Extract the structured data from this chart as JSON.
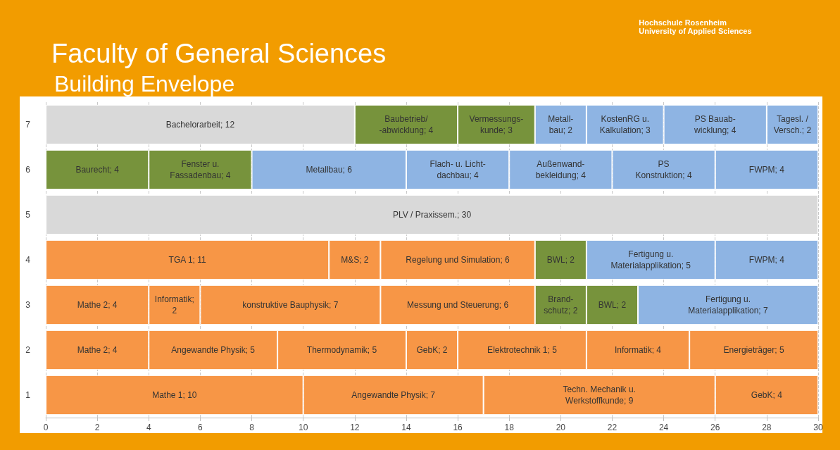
{
  "chart_data": {
    "type": "bar",
    "title": "Faculty of General Sciences",
    "subtitle": "Building Envelope",
    "annotations": [
      "Hochschule Rosenheim\nUniversity of Applied Sciences"
    ],
    "orientation": "horizontal",
    "stacked": true,
    "grid": "x",
    "categories": [
      "7",
      "6",
      "5",
      "4",
      "3",
      "2",
      "1"
    ],
    "xlim": [
      0,
      30
    ],
    "xticks": [
      0,
      2,
      4,
      6,
      8,
      10,
      12,
      14,
      16,
      18,
      20,
      22,
      24,
      26,
      28,
      30
    ],
    "series": [
      {
        "values": [
          12,
          4,
          30,
          11,
          4,
          4,
          10
        ],
        "colors": [
          "#d9d9d9",
          "#77933c",
          "#d9d9d9",
          "#f79646",
          "#f79646",
          "#f79646",
          "#f79646"
        ],
        "value_labels": [
          "Bachelorarbeit; 12",
          "Baurecht; 4",
          "PLV / Praxissem.; 30",
          "TGA 1; 11",
          "Mathe 2; 4",
          "Mathe 2; 4",
          "Mathe 1; 10"
        ]
      },
      {
        "values": [
          4,
          4,
          null,
          2,
          2,
          5,
          7
        ],
        "colors": [
          "#77933c",
          "#77933c",
          null,
          "#f79646",
          "#f79646",
          "#f79646",
          "#f79646"
        ],
        "value_labels": [
          "Baubetrieb/\n-abwicklung; 4",
          "Fenster u.\nFassadenbau; 4",
          null,
          "M&S; 2",
          "Informatik;\n2",
          "Angewandte Physik; 5",
          "Angewandte Physik; 7"
        ]
      },
      {
        "values": [
          3,
          6,
          null,
          6,
          7,
          5,
          9
        ],
        "colors": [
          "#77933c",
          "#8eb4e3",
          null,
          "#f79646",
          "#f79646",
          "#f79646",
          "#f79646"
        ],
        "value_labels": [
          "Vermessungs-\nkunde; 3",
          "Metallbau; 6",
          null,
          "Regelung und Simulation; 6",
          "konstruktive Bauphysik; 7",
          "Thermodynamik; 5",
          "Techn. Mechanik u.\nWerkstoffkunde; 9"
        ]
      },
      {
        "values": [
          2,
          4,
          null,
          2,
          6,
          2,
          4
        ],
        "colors": [
          "#8eb4e3",
          "#8eb4e3",
          null,
          "#77933c",
          "#f79646",
          "#f79646",
          "#f79646"
        ],
        "value_labels": [
          "Metall-\nbau; 2",
          "Flach- u. Licht-\ndachbau; 4",
          null,
          "BWL; 2",
          "Messung und Steuerung; 6",
          "GebK; 2",
          "GebK; 4"
        ]
      },
      {
        "values": [
          3,
          4,
          null,
          5,
          2,
          5,
          null
        ],
        "colors": [
          "#8eb4e3",
          "#8eb4e3",
          null,
          "#8eb4e3",
          "#77933c",
          "#f79646",
          null
        ],
        "value_labels": [
          "KostenRG u.\nKalkulation; 3",
          "Außenwand-\nbekleidung; 4",
          null,
          "Fertigung u.\nMaterialapplikation; 5",
          "Brand-\nschutz; 2",
          "Elektrotechnik 1; 5",
          null
        ]
      },
      {
        "values": [
          4,
          4,
          null,
          4,
          2,
          4,
          null
        ],
        "colors": [
          "#8eb4e3",
          "#8eb4e3",
          null,
          "#8eb4e3",
          "#77933c",
          "#f79646",
          null
        ],
        "value_labels": [
          "PS Bauab-\nwicklung; 4",
          "PS\nKonstruktion; 4",
          null,
          "FWPM; 4",
          "BWL; 2",
          "Informatik; 4",
          null
        ]
      },
      {
        "values": [
          2,
          4,
          null,
          null,
          7,
          5,
          null
        ],
        "colors": [
          "#8eb4e3",
          "#8eb4e3",
          null,
          null,
          "#8eb4e3",
          "#f79646",
          null
        ],
        "value_labels": [
          "Tagesl. /\nVersch.; 2",
          "FWPM; 4",
          null,
          null,
          "Fertigung u.\nMaterialapplikation; 7",
          "Energieträger; 5",
          null
        ]
      }
    ]
  }
}
